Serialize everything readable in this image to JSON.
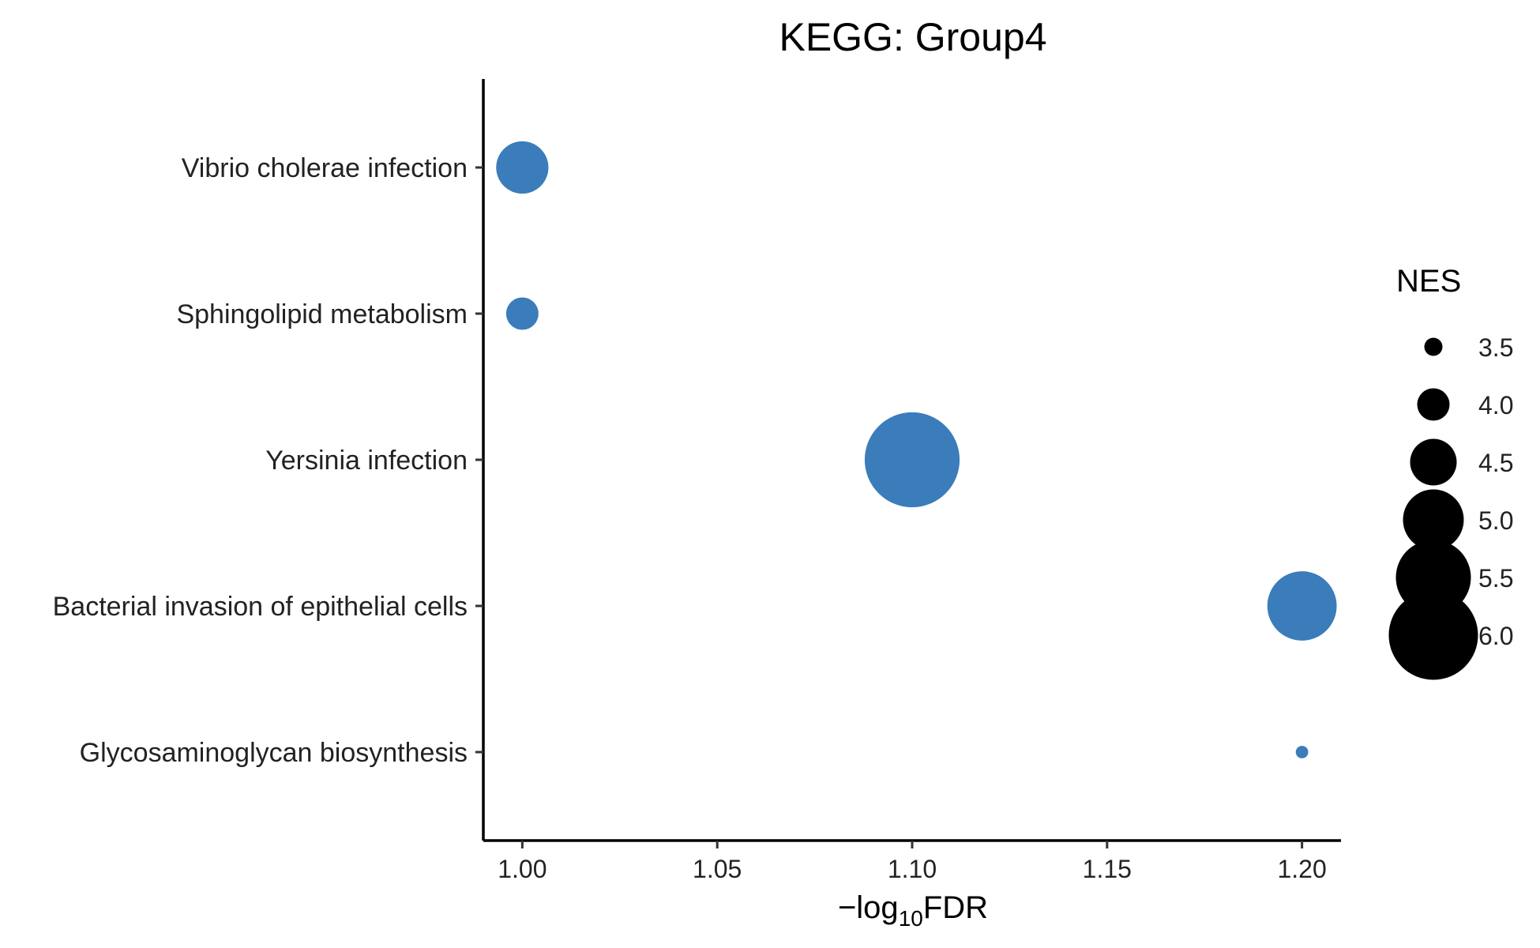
{
  "chart_data": {
    "type": "scatter",
    "title": "KEGG: Group4",
    "xlabel": "",
    "xlabel_parts": {
      "prefix": "−log",
      "sub": "10",
      "suffix": "FDR"
    },
    "ylabel": "",
    "xlim": [
      0.99,
      1.21
    ],
    "x_ticks": [
      1.0,
      1.05,
      1.1,
      1.15,
      1.2
    ],
    "x_tick_labels": [
      "1.00",
      "1.05",
      "1.10",
      "1.15",
      "1.20"
    ],
    "categories": [
      "Vibrio cholerae infection",
      "Sphingolipid metabolism",
      "Yersinia infection",
      "Bacterial invasion of epithelial cells",
      "Glycosaminoglycan biosynthesis"
    ],
    "points": [
      {
        "category": "Vibrio cholerae infection",
        "x": 1.0,
        "nes": 4.7
      },
      {
        "category": "Sphingolipid metabolism",
        "x": 1.0,
        "nes": 4.0
      },
      {
        "category": "Yersinia infection",
        "x": 1.1,
        "nes": 6.2
      },
      {
        "category": "Bacterial invasion of epithelial cells",
        "x": 1.2,
        "nes": 5.3
      },
      {
        "category": "Glycosaminoglycan biosynthesis",
        "x": 1.2,
        "nes": 3.3
      }
    ],
    "point_color": "#3A7DBA",
    "size_legend": {
      "title": "NES",
      "values": [
        3.5,
        4.0,
        4.5,
        5.0,
        5.5,
        6.0
      ],
      "labels": [
        "3.5",
        "4.0",
        "4.5",
        "5.0",
        "5.5",
        "6.0"
      ],
      "color": "#000000"
    },
    "grid": false,
    "legend_position": "right"
  }
}
